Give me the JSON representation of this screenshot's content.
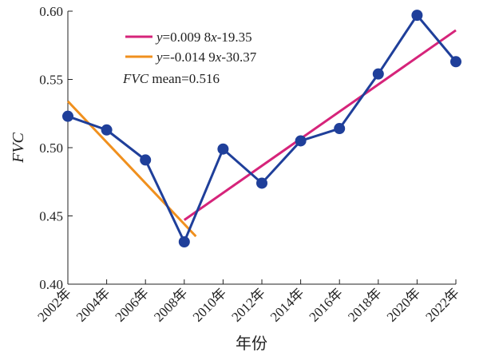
{
  "chart_data": {
    "type": "line",
    "xlabel": "年份",
    "ylabel": "FVC",
    "ylim": [
      0.4,
      0.6
    ],
    "yticks": [
      0.4,
      0.45,
      0.5,
      0.55,
      0.6
    ],
    "y_tick_labels": [
      "0.40",
      "0.45",
      "0.50",
      "0.55",
      "0.60"
    ],
    "x_tick_labels": [
      "2002年",
      "2004年",
      "2006年",
      "2008年",
      "2010年",
      "2012年",
      "2014年",
      "2016年",
      "2018年",
      "2020年",
      "2022年"
    ],
    "x": [
      2002,
      2004,
      2006,
      2008,
      2010,
      2012,
      2014,
      2016,
      2018,
      2020,
      2022
    ],
    "xlim": [
      2002,
      2022
    ],
    "grid": false,
    "series": [
      {
        "values": [
          0.523,
          0.513,
          0.491,
          0.431,
          0.499,
          0.474,
          0.505,
          0.514,
          0.554,
          0.597,
          0.563
        ],
        "color": "#1f3f9a"
      }
    ],
    "trend_lines": [
      {
        "y_prefix": "y",
        "equation": "=0.009 8",
        "x_symbol": "x",
        "equation_tail": "-19.35",
        "color": "#d6247a",
        "x_range": [
          2008,
          2022
        ],
        "y_range": [
          0.447,
          0.586
        ]
      },
      {
        "y_prefix": "y",
        "equation": "=-0.014 9",
        "x_symbol": "x",
        "equation_tail": "-30.37",
        "color": "#f0901e",
        "x_range": [
          2002,
          2008.6
        ],
        "y_range": [
          0.534,
          0.435
        ]
      }
    ],
    "annotation": {
      "label": "FVC",
      "text": " mean=0.516"
    },
    "legend_position": "top-center"
  }
}
